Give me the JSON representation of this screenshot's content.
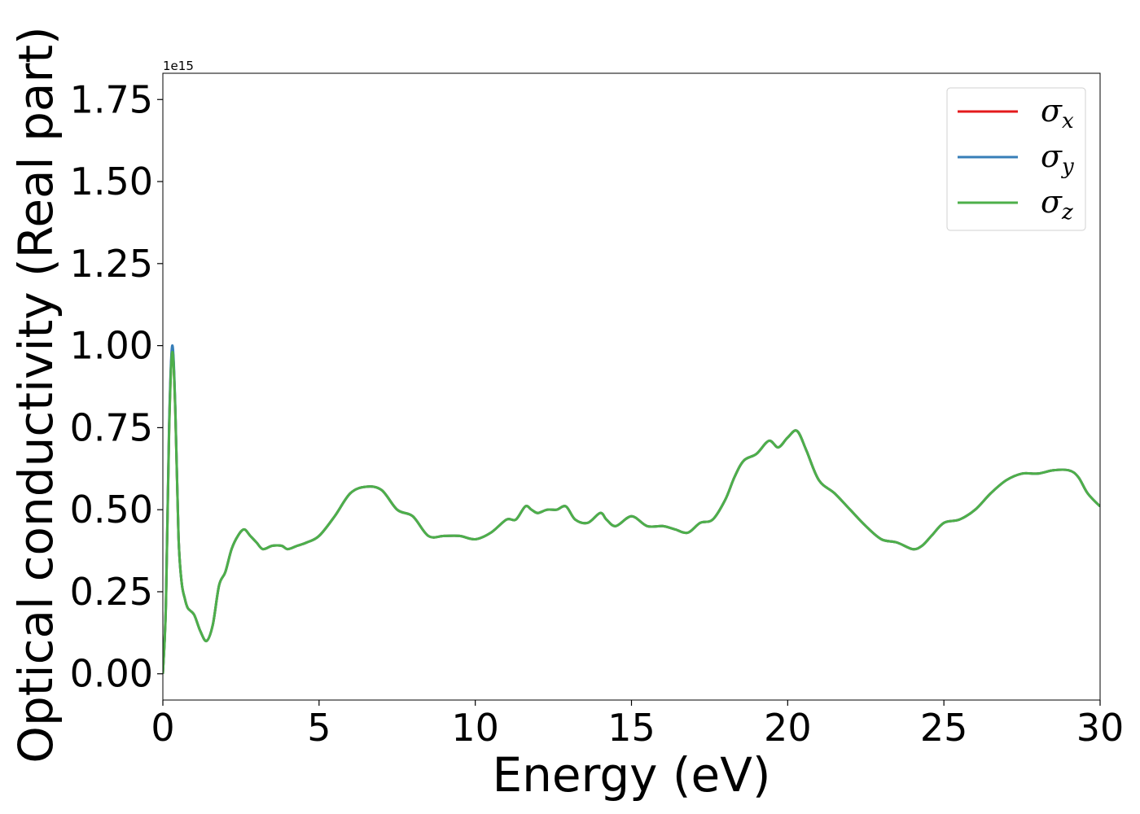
{
  "chart_data": {
    "type": "line",
    "xlabel": "Energy (eV)",
    "ylabel": "Optical conductivity (Real part)",
    "y_offset_label": "1e15",
    "xlim": [
      0,
      30
    ],
    "ylim": [
      -0.08,
      1.83
    ],
    "xticks": [
      0,
      5,
      10,
      15,
      20,
      25,
      30
    ],
    "xtick_labels": [
      "0",
      "5",
      "10",
      "15",
      "20",
      "25",
      "30"
    ],
    "yticks": [
      0.0,
      0.25,
      0.5,
      0.75,
      1.0,
      1.25,
      1.5,
      1.75
    ],
    "ytick_labels": [
      "0.00",
      "0.25",
      "0.50",
      "0.75",
      "1.00",
      "1.25",
      "1.50",
      "1.75"
    ],
    "grid": false,
    "legend_position": "top-right",
    "series": [
      {
        "name": "σx",
        "symbol": "σ",
        "subscript": "x",
        "color": "#e41a1c",
        "x": [
          0,
          0.1,
          0.2,
          0.3,
          0.4,
          0.5,
          0.6,
          0.7,
          0.8,
          1.0,
          1.2,
          1.4,
          1.6,
          1.8,
          2.0,
          2.2,
          2.4,
          2.6,
          2.8,
          3.0,
          3.2,
          3.5,
          3.8,
          4.0,
          4.3,
          4.6,
          5.0,
          5.5,
          6.0,
          6.5,
          7.0,
          7.5,
          8.0,
          8.5,
          9.0,
          9.5,
          10.0,
          10.5,
          11.0,
          11.3,
          11.6,
          11.8,
          12.0,
          12.3,
          12.6,
          12.9,
          13.2,
          13.6,
          14.0,
          14.2,
          14.5,
          15.0,
          15.5,
          16.0,
          16.4,
          16.8,
          17.2,
          17.6,
          18.0,
          18.3,
          18.6,
          19.0,
          19.4,
          19.7,
          20.0,
          20.3,
          20.6,
          21.0,
          21.5,
          22.0,
          22.5,
          23.0,
          23.5,
          24.0,
          24.3,
          24.6,
          25.0,
          25.5,
          26.0,
          26.5,
          27.0,
          27.5,
          28.0,
          28.5,
          29.0,
          29.3,
          29.6,
          30.0
        ],
        "values": [
          0.0,
          0.22,
          0.75,
          0.99,
          0.8,
          0.42,
          0.28,
          0.23,
          0.2,
          0.18,
          0.13,
          0.1,
          0.15,
          0.27,
          0.31,
          0.38,
          0.42,
          0.44,
          0.42,
          0.4,
          0.38,
          0.39,
          0.39,
          0.38,
          0.39,
          0.4,
          0.42,
          0.48,
          0.55,
          0.57,
          0.56,
          0.5,
          0.48,
          0.42,
          0.42,
          0.42,
          0.41,
          0.43,
          0.47,
          0.47,
          0.51,
          0.5,
          0.49,
          0.5,
          0.5,
          0.51,
          0.47,
          0.46,
          0.49,
          0.47,
          0.45,
          0.48,
          0.45,
          0.45,
          0.44,
          0.43,
          0.46,
          0.47,
          0.53,
          0.6,
          0.65,
          0.67,
          0.71,
          0.69,
          0.72,
          0.74,
          0.68,
          0.59,
          0.55,
          0.5,
          0.45,
          0.41,
          0.4,
          0.38,
          0.39,
          0.42,
          0.46,
          0.47,
          0.5,
          0.55,
          0.59,
          0.61,
          0.61,
          0.62,
          0.62,
          0.6,
          0.55,
          0.51
        ]
      },
      {
        "name": "σy",
        "symbol": "σ",
        "subscript": "y",
        "color": "#377eb8",
        "x": [
          0,
          0.1,
          0.2,
          0.3,
          0.4,
          0.5,
          0.6,
          0.7,
          0.8,
          1.0,
          1.2,
          1.4,
          1.6,
          1.8,
          2.0,
          2.2,
          2.4,
          2.6,
          2.8,
          3.0,
          3.2,
          3.5,
          3.8,
          4.0,
          4.3,
          4.6,
          5.0,
          5.5,
          6.0,
          6.5,
          7.0,
          7.5,
          8.0,
          8.5,
          9.0,
          9.5,
          10.0,
          10.5,
          11.0,
          11.3,
          11.6,
          11.8,
          12.0,
          12.3,
          12.6,
          12.9,
          13.2,
          13.6,
          14.0,
          14.2,
          14.5,
          15.0,
          15.5,
          16.0,
          16.4,
          16.8,
          17.2,
          17.6,
          18.0,
          18.3,
          18.6,
          19.0,
          19.4,
          19.7,
          20.0,
          20.3,
          20.6,
          21.0,
          21.5,
          22.0,
          22.5,
          23.0,
          23.5,
          24.0,
          24.3,
          24.6,
          25.0,
          25.5,
          26.0,
          26.5,
          27.0,
          27.5,
          28.0,
          28.5,
          29.0,
          29.3,
          29.6,
          30.0
        ],
        "values": [
          0.0,
          0.22,
          0.76,
          1.0,
          0.81,
          0.42,
          0.28,
          0.23,
          0.2,
          0.18,
          0.13,
          0.1,
          0.15,
          0.27,
          0.31,
          0.38,
          0.42,
          0.44,
          0.42,
          0.4,
          0.38,
          0.39,
          0.39,
          0.38,
          0.39,
          0.4,
          0.42,
          0.48,
          0.55,
          0.57,
          0.56,
          0.5,
          0.48,
          0.42,
          0.42,
          0.42,
          0.41,
          0.43,
          0.47,
          0.47,
          0.51,
          0.5,
          0.49,
          0.5,
          0.5,
          0.51,
          0.47,
          0.46,
          0.49,
          0.47,
          0.45,
          0.48,
          0.45,
          0.45,
          0.44,
          0.43,
          0.46,
          0.47,
          0.53,
          0.6,
          0.65,
          0.67,
          0.71,
          0.69,
          0.72,
          0.74,
          0.68,
          0.59,
          0.55,
          0.5,
          0.45,
          0.41,
          0.4,
          0.38,
          0.39,
          0.42,
          0.46,
          0.47,
          0.5,
          0.55,
          0.59,
          0.61,
          0.61,
          0.62,
          0.62,
          0.6,
          0.55,
          0.51
        ]
      },
      {
        "name": "σz",
        "symbol": "σ",
        "subscript": "z",
        "color": "#4daf4a",
        "x": [
          0,
          0.1,
          0.2,
          0.3,
          0.4,
          0.5,
          0.6,
          0.7,
          0.8,
          1.0,
          1.2,
          1.4,
          1.6,
          1.8,
          2.0,
          2.2,
          2.4,
          2.6,
          2.8,
          3.0,
          3.2,
          3.5,
          3.8,
          4.0,
          4.3,
          4.6,
          5.0,
          5.5,
          6.0,
          6.5,
          7.0,
          7.5,
          8.0,
          8.5,
          9.0,
          9.5,
          10.0,
          10.5,
          11.0,
          11.3,
          11.6,
          11.8,
          12.0,
          12.3,
          12.6,
          12.9,
          13.2,
          13.6,
          14.0,
          14.2,
          14.5,
          15.0,
          15.5,
          16.0,
          16.4,
          16.8,
          17.2,
          17.6,
          18.0,
          18.3,
          18.6,
          19.0,
          19.4,
          19.7,
          20.0,
          20.3,
          20.6,
          21.0,
          21.5,
          22.0,
          22.5,
          23.0,
          23.5,
          24.0,
          24.3,
          24.6,
          25.0,
          25.5,
          26.0,
          26.5,
          27.0,
          27.5,
          28.0,
          28.5,
          29.0,
          29.3,
          29.6,
          30.0
        ],
        "values": [
          0.0,
          0.21,
          0.74,
          0.98,
          0.8,
          0.42,
          0.28,
          0.23,
          0.2,
          0.18,
          0.13,
          0.1,
          0.15,
          0.27,
          0.31,
          0.38,
          0.42,
          0.44,
          0.42,
          0.4,
          0.38,
          0.39,
          0.39,
          0.38,
          0.39,
          0.4,
          0.42,
          0.48,
          0.55,
          0.57,
          0.56,
          0.5,
          0.48,
          0.42,
          0.42,
          0.42,
          0.41,
          0.43,
          0.47,
          0.47,
          0.51,
          0.5,
          0.49,
          0.5,
          0.5,
          0.51,
          0.47,
          0.46,
          0.49,
          0.47,
          0.45,
          0.48,
          0.45,
          0.45,
          0.44,
          0.43,
          0.46,
          0.47,
          0.53,
          0.6,
          0.65,
          0.67,
          0.71,
          0.69,
          0.72,
          0.74,
          0.68,
          0.59,
          0.55,
          0.5,
          0.45,
          0.41,
          0.4,
          0.38,
          0.39,
          0.42,
          0.46,
          0.47,
          0.5,
          0.55,
          0.59,
          0.61,
          0.61,
          0.62,
          0.62,
          0.6,
          0.55,
          0.51
        ]
      }
    ]
  }
}
